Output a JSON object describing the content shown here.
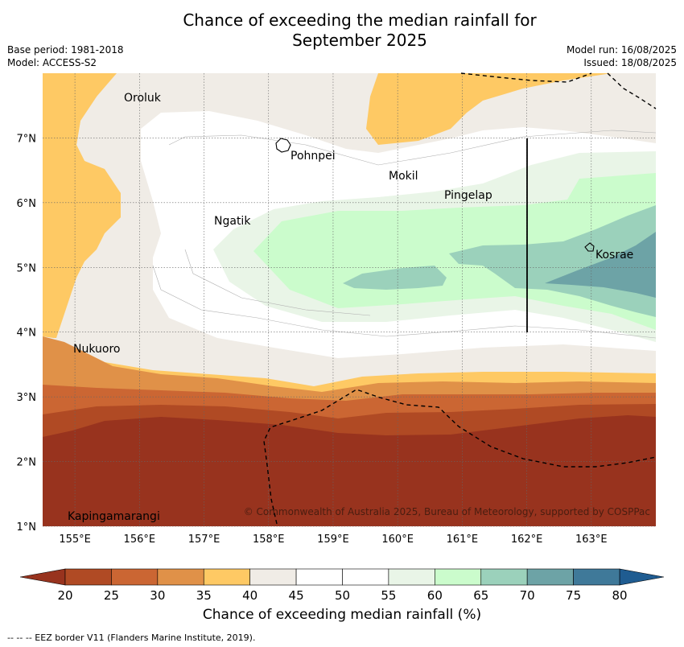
{
  "title": {
    "line1": "Chance of exceeding the median rainfall for",
    "line2": "September 2025"
  },
  "meta": {
    "base_period": "Base period: 1981-2018",
    "model": "Model: ACCESS-S2",
    "model_run": "Model run: 16/08/2025",
    "issued": "Issued: 18/08/2025"
  },
  "map": {
    "lon_range": [
      154.5,
      164.0
    ],
    "lat_range": [
      1.0,
      8.0
    ],
    "lon_ticks": [
      "155°E",
      "156°E",
      "157°E",
      "158°E",
      "159°E",
      "160°E",
      "161°E",
      "162°E",
      "163°E"
    ],
    "lat_ticks": [
      "1°N",
      "2°N",
      "3°N",
      "4°N",
      "5°N",
      "6°N",
      "7°N"
    ],
    "places": [
      "Oroluk",
      "Pohnpei",
      "Mokil",
      "Pingelap",
      "Ngatik",
      "Kosrae",
      "Nukuoro",
      "Kapingamarangi"
    ],
    "copyright": "© Commonwealth of Australia 2025, Bureau of Meteorology, supported by COSPPac",
    "border_style": "dashed",
    "grid": "dotted"
  },
  "legend": {
    "title": "Chance of exceeding median rainfall (%)",
    "ticks": [
      "20",
      "25",
      "30",
      "35",
      "40",
      "45",
      "50",
      "55",
      "60",
      "65",
      "70",
      "75",
      "80"
    ],
    "bins": [
      {
        "range": [
          20,
          25
        ],
        "color": "#b04a24"
      },
      {
        "range": [
          25,
          30
        ],
        "color": "#cb6633"
      },
      {
        "range": [
          30,
          35
        ],
        "color": "#e09148"
      },
      {
        "range": [
          35,
          40
        ],
        "color": "#fec964"
      },
      {
        "range": [
          40,
          45
        ],
        "color": "#f0ece6"
      },
      {
        "range": [
          45,
          50
        ],
        "color": "#ffffff"
      },
      {
        "range": [
          50,
          55
        ],
        "color": "#ffffff"
      },
      {
        "range": [
          55,
          60
        ],
        "color": "#e9f5e7"
      },
      {
        "range": [
          60,
          65
        ],
        "color": "#cbfccc"
      },
      {
        "range": [
          65,
          70
        ],
        "color": "#9bd1bb"
      },
      {
        "range": [
          70,
          75
        ],
        "color": "#6da3a6"
      },
      {
        "range": [
          75,
          80
        ],
        "color": "#3f7999"
      }
    ],
    "under_color": "#98331e",
    "over_color": "#1f5c91"
  },
  "footer": "--  --  -- EEZ border V11 (Flanders Marine Institute, 2019)."
}
